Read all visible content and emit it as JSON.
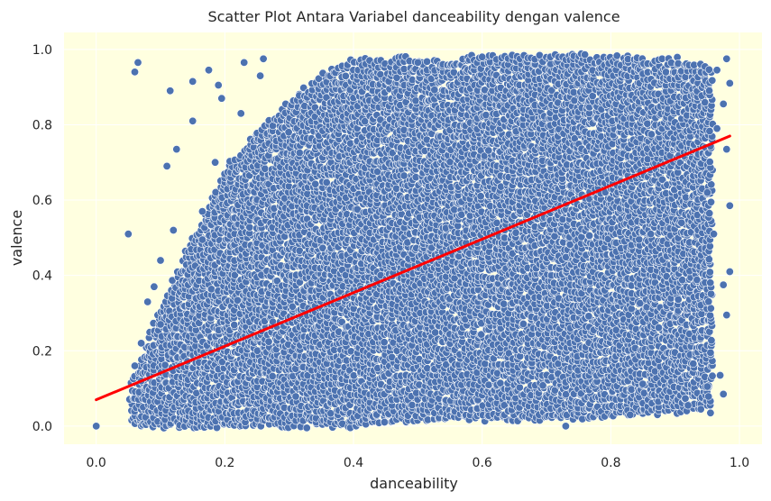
{
  "chart_data": {
    "type": "scatter",
    "title": "Scatter Plot Antara Variabel danceability dengan valence",
    "xlabel": "danceability",
    "ylabel": "valence",
    "xlim": [
      -0.05,
      1.035
    ],
    "ylim": [
      -0.048,
      1.045
    ],
    "xticks": [
      0.0,
      0.2,
      0.4,
      0.6,
      0.8,
      1.0
    ],
    "xtick_labels": [
      "0.0",
      "0.2",
      "0.4",
      "0.6",
      "0.8",
      "1.0"
    ],
    "yticks": [
      0.0,
      0.2,
      0.4,
      0.6,
      0.8,
      1.0
    ],
    "ytick_labels": [
      "0.0",
      "0.2",
      "0.4",
      "0.6",
      "0.8",
      "1.0"
    ],
    "grid": true,
    "background_color": "#ffffe0",
    "grid_color": "#ffffff",
    "marker_color": "#4c72b0",
    "marker_edge_color": "#ffffff",
    "regression_line": {
      "color": "#ff0000",
      "x": [
        0.0,
        0.985
      ],
      "y": [
        0.07,
        0.77
      ]
    },
    "series": [
      {
        "points": [
          [
            0.0,
            0.0
          ],
          [
            0.05,
            0.51
          ],
          [
            0.06,
            0.94
          ],
          [
            0.065,
            0.965
          ],
          [
            0.115,
            0.89
          ],
          [
            0.125,
            0.735
          ],
          [
            0.15,
            0.915
          ],
          [
            0.15,
            0.81
          ],
          [
            0.165,
            0.57
          ],
          [
            0.165,
            0.495
          ],
          [
            0.175,
            0.945
          ],
          [
            0.185,
            0.7
          ],
          [
            0.19,
            0.905
          ],
          [
            0.195,
            0.87
          ],
          [
            0.225,
            0.83
          ],
          [
            0.23,
            0.965
          ],
          [
            0.255,
            0.93
          ],
          [
            0.26,
            0.975
          ],
          [
            0.1,
            0.44
          ],
          [
            0.08,
            0.33
          ],
          [
            0.09,
            0.37
          ],
          [
            0.07,
            0.22
          ],
          [
            0.1,
            0.27
          ],
          [
            0.11,
            0.69
          ],
          [
            0.12,
            0.52
          ],
          [
            0.06,
            0.16
          ],
          [
            0.07,
            0.12
          ],
          [
            0.73,
            0.0
          ],
          [
            0.5,
            0.965
          ],
          [
            0.6,
            0.98
          ],
          [
            0.985,
            0.41
          ],
          [
            0.98,
            0.295
          ],
          [
            0.985,
            0.585
          ],
          [
            0.975,
            0.085
          ],
          [
            0.955,
            0.035
          ],
          [
            0.94,
            0.045
          ],
          [
            0.97,
            0.135
          ],
          [
            0.985,
            0.91
          ],
          [
            0.98,
            0.975
          ],
          [
            0.965,
            0.945
          ],
          [
            0.975,
            0.855
          ],
          [
            0.965,
            0.79
          ],
          [
            0.98,
            0.735
          ],
          [
            0.95,
            0.62
          ],
          [
            0.96,
            0.51
          ],
          [
            0.975,
            0.375
          ],
          [
            0.955,
            0.195
          ],
          [
            0.95,
            0.105
          ],
          [
            0.92,
            0.055
          ],
          [
            0.83,
            0.03
          ]
        ],
        "density_envelope": {
          "x": [
            0.055,
            0.1,
            0.15,
            0.2,
            0.25,
            0.3,
            0.35,
            0.4,
            0.5,
            0.6,
            0.7,
            0.8,
            0.9,
            0.96
          ],
          "y_low": [
            0.0,
            0.0,
            0.0,
            0.0,
            0.0,
            0.0,
            0.0,
            0.0,
            0.02,
            0.02,
            0.02,
            0.03,
            0.04,
            0.06
          ],
          "y_high": [
            0.12,
            0.32,
            0.5,
            0.68,
            0.78,
            0.86,
            0.93,
            0.975,
            0.975,
            0.98,
            0.985,
            0.985,
            0.975,
            0.95
          ]
        }
      }
    ]
  }
}
